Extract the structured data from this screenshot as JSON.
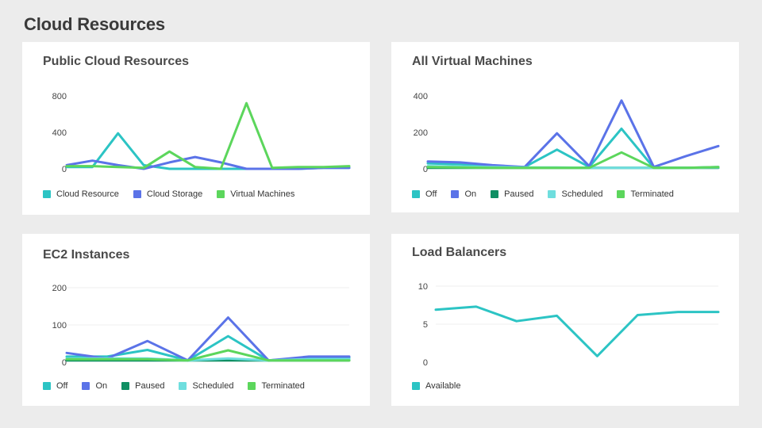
{
  "page": {
    "title": "Cloud Resources"
  },
  "chart_data": [
    {
      "type": "line",
      "title": "Public Cloud Resources",
      "x": [
        0,
        1,
        2,
        3,
        4,
        5,
        6,
        7,
        8,
        9,
        10,
        11
      ],
      "yticks": [
        0,
        400,
        800
      ],
      "ylim": [
        0,
        800
      ],
      "grid": false,
      "legend": "bottom",
      "series": [
        {
          "name": "Cloud Resource",
          "color": "#2cc4c4",
          "values": [
            20,
            20,
            390,
            40,
            0,
            0,
            0,
            0,
            0,
            0,
            10,
            10
          ]
        },
        {
          "name": "Cloud Storage",
          "color": "#5b73e8",
          "values": [
            40,
            90,
            40,
            0,
            70,
            130,
            70,
            0,
            0,
            0,
            10,
            10
          ]
        },
        {
          "name": "Virtual Machines",
          "color": "#5cd65c",
          "values": [
            30,
            30,
            20,
            10,
            190,
            20,
            0,
            720,
            10,
            20,
            20,
            30
          ]
        }
      ]
    },
    {
      "type": "line",
      "title": "All Virtual Machines",
      "x": [
        0,
        1,
        2,
        3,
        4,
        5,
        6,
        7,
        8,
        9
      ],
      "yticks": [
        0,
        200,
        400
      ],
      "ylim": [
        0,
        400
      ],
      "grid": false,
      "legend": "bottom",
      "series": [
        {
          "name": "Off",
          "color": "#2cc4c4",
          "values": [
            30,
            25,
            15,
            10,
            105,
            10,
            220,
            5,
            5,
            10
          ]
        },
        {
          "name": "On",
          "color": "#5b73e8",
          "values": [
            40,
            35,
            20,
            10,
            195,
            15,
            375,
            10,
            70,
            125
          ]
        },
        {
          "name": "Paused",
          "color": "#0f8f63",
          "values": [
            5,
            5,
            5,
            5,
            5,
            5,
            5,
            5,
            5,
            5
          ]
        },
        {
          "name": "Scheduled",
          "color": "#6fdede",
          "values": [
            15,
            12,
            10,
            8,
            8,
            5,
            5,
            5,
            5,
            8
          ]
        },
        {
          "name": "Terminated",
          "color": "#5cd65c",
          "values": [
            10,
            8,
            5,
            5,
            5,
            5,
            90,
            5,
            5,
            10
          ]
        }
      ]
    },
    {
      "type": "line",
      "title": "EC2 Instances",
      "x": [
        0,
        1,
        2,
        3,
        4,
        5,
        6,
        7
      ],
      "yticks": [
        0,
        100,
        200
      ],
      "ylim": [
        0,
        200
      ],
      "grid": true,
      "legend": "bottom",
      "series": [
        {
          "name": "Off",
          "color": "#2cc4c4",
          "values": [
            15,
            15,
            33,
            5,
            70,
            5,
            12,
            12
          ]
        },
        {
          "name": "On",
          "color": "#5b73e8",
          "values": [
            25,
            10,
            57,
            5,
            120,
            5,
            15,
            15
          ]
        },
        {
          "name": "Paused",
          "color": "#0f8f63",
          "values": [
            5,
            5,
            5,
            5,
            5,
            5,
            5,
            5
          ]
        },
        {
          "name": "Scheduled",
          "color": "#6fdede",
          "values": [
            10,
            10,
            10,
            5,
            10,
            5,
            8,
            8
          ]
        },
        {
          "name": "Terminated",
          "color": "#5cd65c",
          "values": [
            8,
            8,
            8,
            5,
            32,
            5,
            5,
            5
          ]
        }
      ]
    },
    {
      "type": "line",
      "title": "Load Balancers",
      "x": [
        0,
        1,
        2,
        3,
        4,
        5,
        6,
        7
      ],
      "yticks": [
        0,
        5,
        10
      ],
      "ylim": [
        0,
        10
      ],
      "grid": true,
      "legend": "bottom",
      "series": [
        {
          "name": "Available",
          "color": "#2cc4c4",
          "values": [
            6.9,
            7.3,
            5.4,
            6.1,
            0.8,
            6.2,
            6.6,
            6.6
          ]
        }
      ]
    }
  ]
}
